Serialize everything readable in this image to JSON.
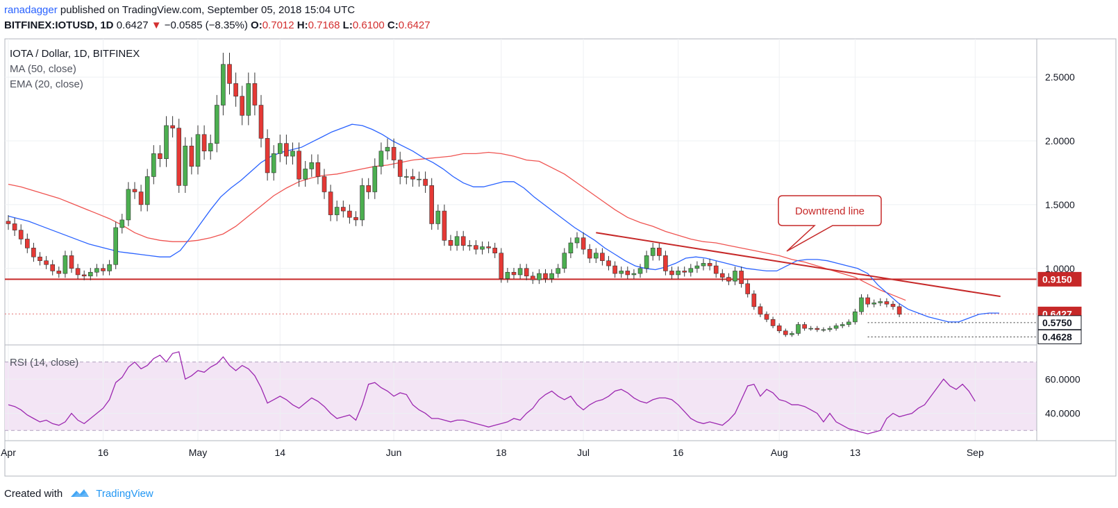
{
  "header": {
    "author": "ranadagger",
    "published_text": "published on TradingView.com, September 05, 2018 15:04 UTC",
    "symbol": "BITFINEX:IOTUSD, 1D",
    "last": "0.6427",
    "change": "−0.0585 (−8.35%)",
    "open_label": "O:",
    "open": "0.7012",
    "high_label": "H:",
    "high": "0.7168",
    "low_label": "L:",
    "low": "0.6100",
    "close_label": "C:",
    "close": "0.6427"
  },
  "legend": {
    "title": "IOTA / Dollar, 1D, BITFINEX",
    "ma": "MA (50, close)",
    "ema": "EMA (20, close)",
    "rsi": "RSI (14, close)"
  },
  "annotation": {
    "text": "Downtrend line"
  },
  "footer": {
    "created_with": "Created with",
    "brand": "TradingView"
  },
  "colors": {
    "up": "#4caf50",
    "down": "#e53935",
    "ma": "#ef5350",
    "ema": "#2962ff",
    "rsi": "#9c27b0",
    "support": "#c62828"
  },
  "chart_data": {
    "type": "candlestick",
    "price_axis": {
      "ticks": [
        1.0,
        1.5,
        2.0,
        2.5
      ],
      "tick_labels": [
        "1.0000",
        "1.5000",
        "2.0000",
        "2.5000"
      ],
      "range": [
        0.4,
        2.8
      ]
    },
    "rsi_axis": {
      "ticks": [
        40,
        60
      ],
      "tick_labels": [
        "40.0000",
        "60.0000"
      ],
      "range": [
        24,
        80
      ],
      "band": [
        30,
        70
      ]
    },
    "x_labels": [
      {
        "day": 0,
        "text": "Apr"
      },
      {
        "day": 15,
        "text": "16"
      },
      {
        "day": 30,
        "text": "May"
      },
      {
        "day": 43,
        "text": "14"
      },
      {
        "day": 61,
        "text": "Jun"
      },
      {
        "day": 78,
        "text": "18"
      },
      {
        "day": 91,
        "text": "Jul"
      },
      {
        "day": 106,
        "text": "16"
      },
      {
        "day": 122,
        "text": "Aug"
      },
      {
        "day": 134,
        "text": "13"
      },
      {
        "day": 153,
        "text": "Sep"
      }
    ],
    "price_labels": [
      {
        "value": 0.915,
        "text": "0.9150",
        "style": "support"
      },
      {
        "value": 0.6427,
        "text": "0.6427",
        "style": "last"
      },
      {
        "value": 0.575,
        "text": "0.5750",
        "style": "level"
      },
      {
        "value": 0.4628,
        "text": "0.4628",
        "style": "level"
      }
    ],
    "horizontal_lines": [
      {
        "value": 0.915,
        "style": "solid"
      },
      {
        "value": 0.6427,
        "style": "dotted"
      },
      {
        "value": 0.575,
        "style": "dotted",
        "start_day": 136
      },
      {
        "value": 0.4628,
        "style": "dotted",
        "start_day": 136
      }
    ],
    "trend_line": {
      "start": {
        "day": 93,
        "value": 1.28
      },
      "end": {
        "day": 157,
        "value": 0.78
      }
    },
    "close": [
      1.35,
      1.3,
      1.23,
      1.16,
      1.09,
      1.06,
      1.03,
      0.98,
      0.96,
      1.1,
      1.0,
      0.95,
      0.94,
      0.97,
      1.0,
      0.98,
      1.03,
      1.32,
      1.38,
      1.62,
      1.6,
      1.5,
      1.72,
      1.9,
      1.86,
      2.12,
      2.1,
      1.65,
      1.96,
      1.8,
      2.05,
      1.92,
      1.98,
      2.28,
      2.6,
      2.45,
      2.35,
      2.2,
      2.45,
      2.28,
      2.02,
      1.75,
      1.9,
      1.98,
      1.88,
      1.92,
      1.7,
      1.78,
      1.83,
      1.72,
      1.6,
      1.42,
      1.48,
      1.45,
      1.4,
      1.38,
      1.65,
      1.6,
      1.8,
      1.92,
      1.95,
      1.85,
      1.72,
      1.72,
      1.7,
      1.7,
      1.65,
      1.35,
      1.45,
      1.22,
      1.18,
      1.25,
      1.18,
      1.18,
      1.15,
      1.17,
      1.16,
      1.12,
      0.92,
      0.97,
      0.95,
      1.0,
      0.94,
      0.91,
      0.96,
      0.92,
      0.96,
      1.0,
      1.12,
      1.2,
      1.24,
      1.15,
      1.08,
      1.12,
      1.06,
      1.02,
      0.96,
      0.98,
      0.95,
      0.96,
      1.0,
      1.1,
      1.16,
      1.1,
      0.98,
      0.95,
      0.98,
      0.97,
      1.0,
      1.02,
      1.04,
      1.02,
      0.96,
      0.93,
      0.9,
      0.98,
      0.88,
      0.8,
      0.7,
      0.64,
      0.6,
      0.55,
      0.51,
      0.48,
      0.49,
      0.56,
      0.53,
      0.53,
      0.52,
      0.52,
      0.53,
      0.55,
      0.56,
      0.58,
      0.66,
      0.77,
      0.72,
      0.73,
      0.74,
      0.72,
      0.7,
      0.64
    ],
    "ma50": [
      1.66,
      1.64,
      1.61,
      1.58,
      1.55,
      1.51,
      1.47,
      1.43,
      1.39,
      1.34,
      1.28,
      1.24,
      1.22,
      1.21,
      1.21,
      1.22,
      1.24,
      1.27,
      1.33,
      1.41,
      1.49,
      1.57,
      1.63,
      1.68,
      1.71,
      1.73,
      1.74,
      1.76,
      1.78,
      1.8,
      1.81,
      1.83,
      1.85,
      1.86,
      1.87,
      1.88,
      1.9,
      1.9,
      1.91,
      1.9,
      1.88,
      1.85,
      1.84,
      1.79,
      1.74,
      1.67,
      1.6,
      1.53,
      1.46,
      1.4,
      1.36,
      1.33,
      1.29,
      1.26,
      1.23,
      1.21,
      1.2,
      1.18,
      1.16,
      1.14,
      1.12,
      1.1,
      1.07,
      1.05,
      1.02,
      0.99,
      0.96,
      0.93,
      0.88,
      0.83,
      0.79,
      0.75
    ],
    "ma50_start_day": 0,
    "ma50_step_days": 2,
    "ema20": [
      1.41,
      1.39,
      1.37,
      1.34,
      1.31,
      1.28,
      1.25,
      1.22,
      1.19,
      1.17,
      1.15,
      1.13,
      1.12,
      1.11,
      1.1,
      1.09,
      1.09,
      1.14,
      1.24,
      1.35,
      1.46,
      1.56,
      1.63,
      1.69,
      1.76,
      1.83,
      1.88,
      1.91,
      1.93,
      1.95,
      1.99,
      2.03,
      2.07,
      2.1,
      2.13,
      2.12,
      2.09,
      2.05,
      2.0,
      1.96,
      1.92,
      1.87,
      1.83,
      1.78,
      1.72,
      1.67,
      1.64,
      1.64,
      1.66,
      1.68,
      1.68,
      1.63,
      1.56,
      1.5,
      1.44,
      1.38,
      1.32,
      1.27,
      1.22,
      1.16,
      1.11,
      1.06,
      1.02,
      1.0,
      0.99,
      1.01,
      1.04,
      1.08,
      1.09,
      1.08,
      1.06,
      1.04,
      1.02,
      1.0,
      0.99,
      0.98,
      0.98,
      1.02,
      1.06,
      1.07,
      1.07,
      1.06,
      1.04,
      1.02,
      1.0,
      0.96,
      0.87,
      0.8,
      0.73,
      0.68,
      0.65,
      0.62,
      0.6,
      0.58,
      0.58,
      0.61,
      0.64,
      0.65,
      0.65
    ],
    "ema20_start_day": 0,
    "ema20_step_days": 1.6,
    "rsi": [
      45,
      44,
      42,
      39,
      37,
      35,
      36,
      34,
      33,
      35,
      40,
      36,
      34,
      37,
      40,
      43,
      48,
      58,
      61,
      67,
      70,
      66,
      68,
      72,
      74,
      70,
      75,
      76,
      60,
      62,
      65,
      64,
      67,
      69,
      73,
      68,
      65,
      68,
      66,
      62,
      55,
      46,
      48,
      50,
      48,
      45,
      43,
      46,
      49,
      47,
      44,
      40,
      37,
      38,
      39,
      36,
      45,
      57,
      58,
      55,
      53,
      50,
      52,
      51,
      45,
      42,
      40,
      37,
      37,
      36,
      35,
      36,
      36,
      35,
      34,
      33,
      32,
      33,
      34,
      35,
      37,
      36,
      40,
      43,
      48,
      51,
      53,
      50,
      48,
      50,
      45,
      42,
      45,
      47,
      48,
      50,
      53,
      54,
      52,
      49,
      47,
      46,
      48,
      49,
      49,
      48,
      45,
      41,
      37,
      35,
      34,
      35,
      34,
      33,
      36,
      40,
      48,
      56,
      57,
      50,
      54,
      52,
      48,
      47,
      45,
      45,
      44,
      42,
      40,
      35,
      40,
      35,
      33,
      31,
      30,
      29,
      28,
      29,
      30,
      37,
      40,
      38,
      39,
      40,
      43,
      45,
      50,
      55,
      60,
      56,
      54,
      57,
      53,
      47
    ]
  }
}
